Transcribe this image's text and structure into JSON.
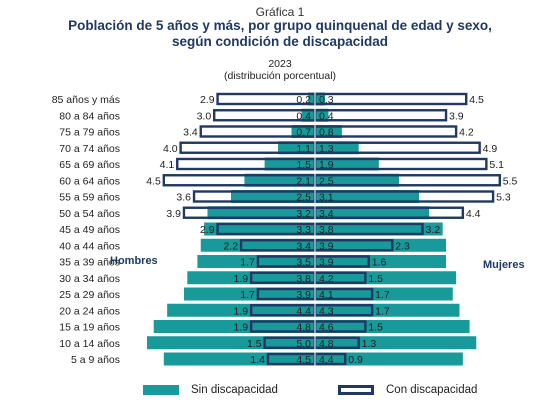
{
  "header": {
    "kicker": "Gráfica 1",
    "title_line1": "Población de 5 años y más, por grupo quinquenal de edad y sexo,",
    "title_line2": "según condición de discapacidad",
    "year": "2023",
    "unit": "(distribución porcentual)"
  },
  "colors": {
    "sin_discapacidad": "#179a99",
    "con_discapacidad_border": "#1f3864"
  },
  "chart_data": {
    "type": "bar",
    "orientation": "horizontal-population-pyramid",
    "categories": [
      "85 años y más",
      "80 a 84 años",
      "75 a 79 años",
      "70 a 74 años",
      "65 a 69 años",
      "60 a 64 años",
      "55 a 59 años",
      "50 a 54 años",
      "45 a 49 años",
      "40 a 44 años",
      "35 a 39 años",
      "30 a 34 años",
      "25 a 29 años",
      "20 a 24 años",
      "15 a 19 años",
      "10 a 14 años",
      "5 a 9 años"
    ],
    "side_labels": {
      "left": "Hombres",
      "right": "Mujeres"
    },
    "series": [
      {
        "name": "Sin discapacidad",
        "side": "left",
        "values": [
          0.2,
          0.4,
          0.7,
          1.1,
          1.5,
          2.1,
          2.5,
          3.2,
          3.3,
          3.4,
          3.5,
          3.8,
          3.9,
          4.4,
          4.8,
          5.0,
          4.5
        ]
      },
      {
        "name": "Sin discapacidad",
        "side": "right",
        "values": [
          0.3,
          0.4,
          0.8,
          1.3,
          1.9,
          2.5,
          3.1,
          3.4,
          3.8,
          3.9,
          3.9,
          4.2,
          4.1,
          4.3,
          4.6,
          4.8,
          4.4
        ]
      },
      {
        "name": "Con discapacidad",
        "side": "left",
        "values": [
          2.9,
          3.0,
          3.4,
          4.0,
          4.1,
          4.5,
          3.6,
          3.9,
          2.9,
          2.2,
          1.7,
          1.9,
          1.7,
          1.9,
          1.9,
          1.5,
          1.4
        ]
      },
      {
        "name": "Con discapacidad",
        "side": "right",
        "values": [
          4.5,
          3.9,
          4.2,
          4.9,
          5.1,
          5.5,
          5.3,
          4.4,
          3.2,
          2.3,
          1.6,
          1.5,
          1.7,
          1.7,
          1.5,
          1.3,
          0.9
        ]
      }
    ],
    "legend": [
      "Sin discapacidad",
      "Con discapacidad"
    ],
    "legend_position": "bottom",
    "xlim": [
      0,
      5.5
    ],
    "grid": false
  }
}
